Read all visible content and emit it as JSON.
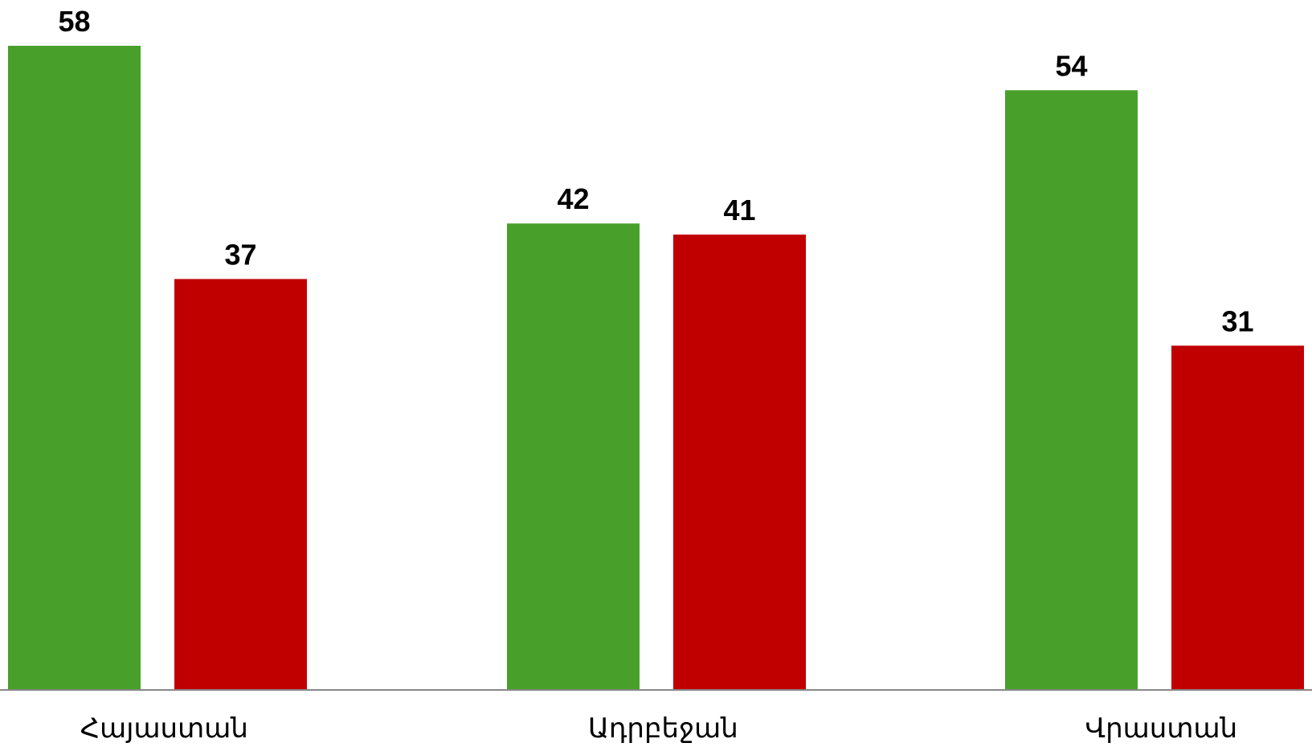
{
  "chart_data": {
    "type": "bar",
    "categories": [
      "Հայաստան",
      "Ադրբեջան",
      "Վրաստան"
    ],
    "series": [
      {
        "values": [
          58,
          42,
          54
        ],
        "color": "#48a02b"
      },
      {
        "values": [
          37,
          41,
          31
        ],
        "color": "#c00000"
      }
    ],
    "ylim": [
      0,
      58
    ],
    "grid": false,
    "legend": "none",
    "axis_color": "#888888"
  }
}
